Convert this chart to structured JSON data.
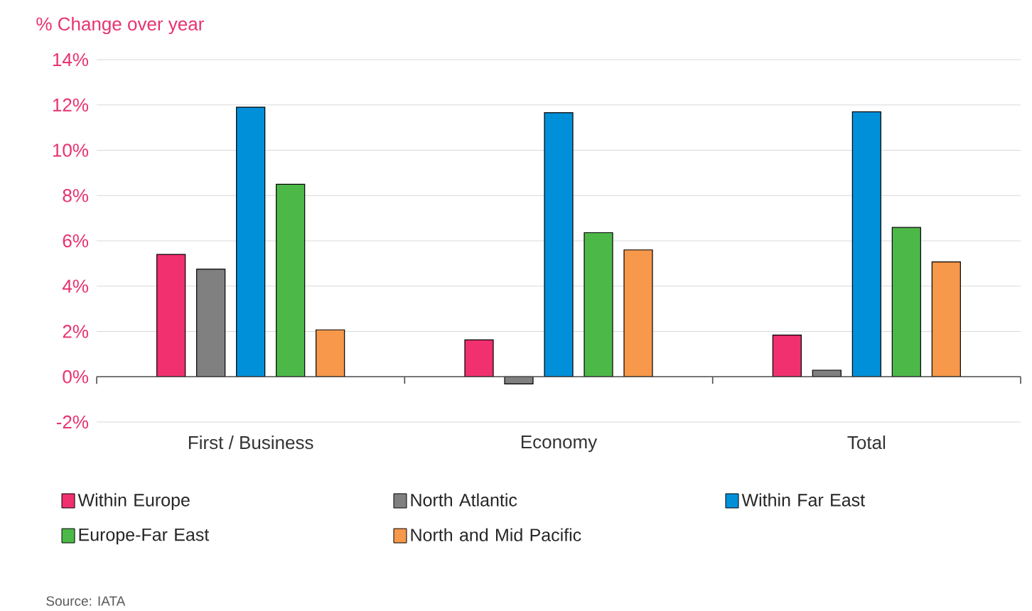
{
  "chart_data": {
    "type": "bar",
    "ylabel": "% Change over year",
    "categories": [
      "First / Business",
      "Economy",
      "Total"
    ],
    "series": [
      {
        "name": "Within Europe",
        "color": "#f0306f",
        "values": [
          5.4,
          1.63,
          1.84
        ]
      },
      {
        "name": "North Atlantic",
        "color": "#808080",
        "values": [
          4.75,
          -0.32,
          0.29
        ]
      },
      {
        "name": "Within Far East",
        "color": "#0090da",
        "values": [
          11.9,
          11.66,
          11.7
        ]
      },
      {
        "name": "Europe-Far East",
        "color": "#4cb848",
        "values": [
          8.5,
          6.36,
          6.59
        ]
      },
      {
        "name": "North and Mid Pacific",
        "color": "#f7984a",
        "values": [
          2.07,
          5.6,
          5.07
        ]
      }
    ],
    "ylim": [
      -2,
      14
    ],
    "yticks": [
      {
        "value": -2,
        "label": "-2%"
      },
      {
        "value": 0,
        "label": "0%"
      },
      {
        "value": 2,
        "label": "2%"
      },
      {
        "value": 4,
        "label": "4%"
      },
      {
        "value": 6,
        "label": "6%"
      },
      {
        "value": 8,
        "label": "8%"
      },
      {
        "value": 10,
        "label": "10%"
      },
      {
        "value": 12,
        "label": "12%"
      },
      {
        "value": 14,
        "label": "14%"
      }
    ],
    "grid": "y",
    "legend": "bottom",
    "annotations": [
      "Source: IATA"
    ]
  }
}
